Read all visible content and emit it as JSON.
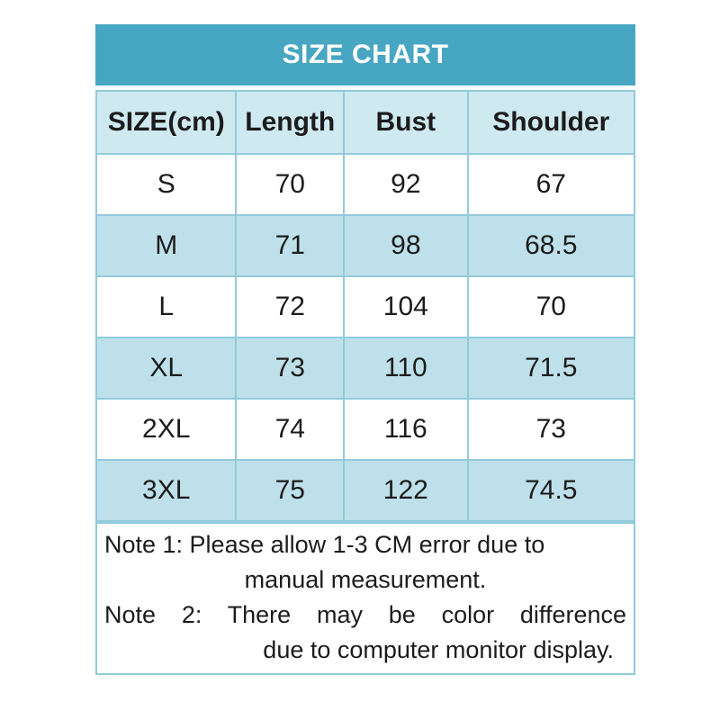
{
  "header": {
    "title": "SIZE CHART"
  },
  "table": {
    "columns": [
      "SIZE(cm)",
      "Length",
      "Bust",
      "Shoulder"
    ],
    "rows": [
      {
        "size": "S",
        "length": "70",
        "bust": "92",
        "shoulder": "67"
      },
      {
        "size": "M",
        "length": "71",
        "bust": "98",
        "shoulder": "68.5"
      },
      {
        "size": "L",
        "length": "72",
        "bust": "104",
        "shoulder": "70"
      },
      {
        "size": "XL",
        "length": "73",
        "bust": "110",
        "shoulder": "71.5"
      },
      {
        "size": "2XL",
        "length": "74",
        "bust": "116",
        "shoulder": "73"
      },
      {
        "size": "3XL",
        "length": "75",
        "bust": "122",
        "shoulder": "74.5"
      }
    ]
  },
  "notes": {
    "line1": "Note 1: Please allow 1-3 CM error due to",
    "line2": "manual measurement.",
    "line3": "Note 2: There may be color difference",
    "line4": "due to computer monitor display."
  },
  "colors": {
    "title_bar_bg": "#47a6c2",
    "title_text": "#ffffff",
    "header_row_bg": "#cfe9f1",
    "alt_row_bg": "#bee0ea",
    "row_bg": "#ffffff",
    "border": "#93cadb",
    "text": "#1c1c1c"
  },
  "chart_data": {
    "type": "table",
    "title": "SIZE CHART",
    "columns": [
      "SIZE(cm)",
      "Length",
      "Bust",
      "Shoulder"
    ],
    "rows": [
      [
        "S",
        70,
        92,
        67
      ],
      [
        "M",
        71,
        98,
        68.5
      ],
      [
        "L",
        72,
        104,
        70
      ],
      [
        "XL",
        73,
        110,
        71.5
      ],
      [
        "2XL",
        74,
        116,
        73
      ],
      [
        "3XL",
        75,
        122,
        74.5
      ]
    ],
    "notes": [
      "Note 1: Please allow 1-3 CM error due to manual measurement.",
      "Note 2: There may be color difference due to computer monitor display."
    ]
  }
}
